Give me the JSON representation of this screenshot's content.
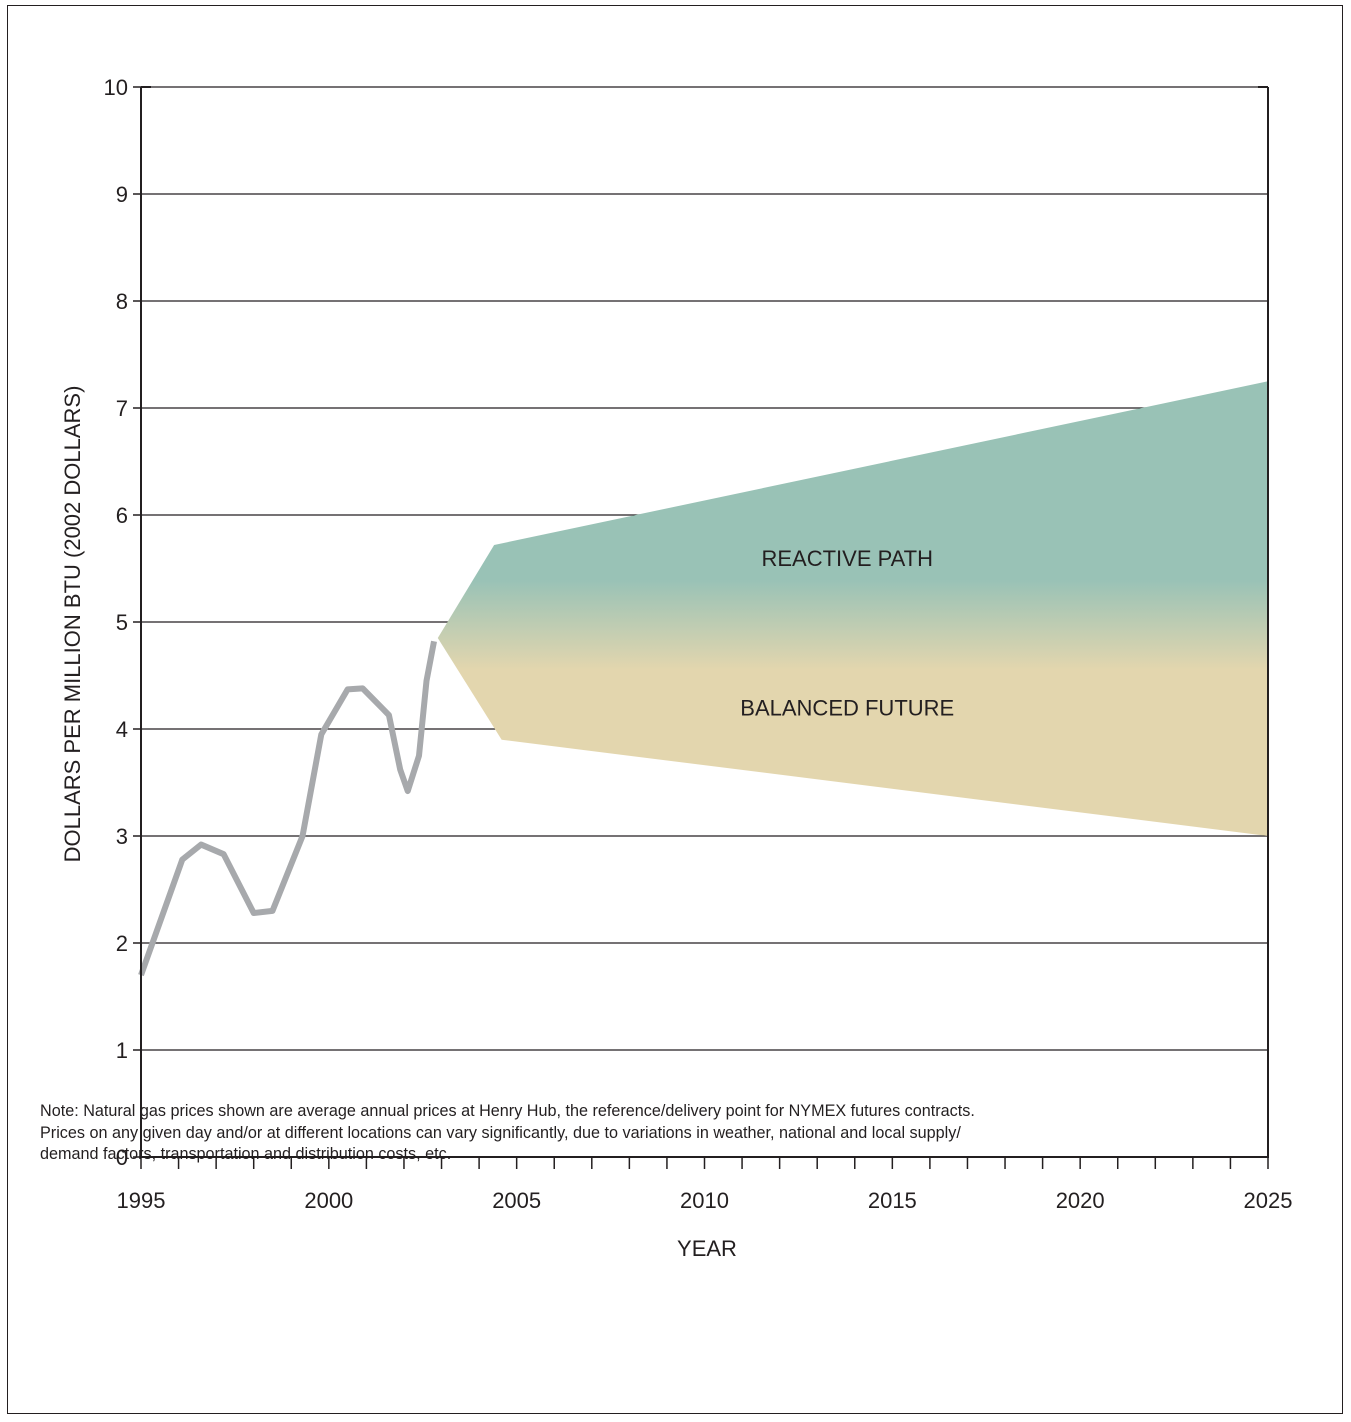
{
  "chart_data": {
    "type": "line",
    "title": "",
    "xlabel": "YEAR",
    "ylabel": "DOLLARS PER MILLION BTU (2002 DOLLARS)",
    "xlim": [
      1995,
      2025
    ],
    "ylim": [
      0,
      10
    ],
    "x_ticks": [
      1995,
      2000,
      2005,
      2010,
      2015,
      2020,
      2025
    ],
    "y_ticks": [
      0,
      1,
      2,
      3,
      4,
      5,
      6,
      7,
      8,
      9,
      10
    ],
    "grid": true,
    "series": [
      {
        "color": "#a7a9ac",
        "points": [
          [
            1995.0,
            1.7
          ],
          [
            1996.1,
            2.78
          ],
          [
            1996.6,
            2.92
          ],
          [
            1997.2,
            2.83
          ],
          [
            1998.0,
            2.28
          ],
          [
            1998.5,
            2.3
          ],
          [
            1999.3,
            3.0
          ],
          [
            1999.8,
            3.95
          ],
          [
            2000.5,
            4.37
          ],
          [
            2000.9,
            4.38
          ],
          [
            2001.6,
            4.13
          ],
          [
            2001.9,
            3.62
          ],
          [
            2002.1,
            3.42
          ],
          [
            2002.4,
            3.75
          ],
          [
            2002.6,
            4.45
          ],
          [
            2002.8,
            4.82
          ]
        ]
      }
    ],
    "bands": [
      {
        "label": "REACTIVE PATH",
        "color": "#99c2b6",
        "upper": [
          [
            2002.9,
            4.85
          ],
          [
            2004.4,
            5.72
          ],
          [
            2025.0,
            7.25
          ]
        ]
      },
      {
        "label": "BALANCED FUTURE",
        "color": "#e3d6ae",
        "lower": [
          [
            2002.9,
            4.85
          ],
          [
            2004.6,
            3.9
          ],
          [
            2025.0,
            3.0
          ]
        ]
      }
    ],
    "band_labels": [
      {
        "text": "REACTIVE PATH",
        "x": 2013.8,
        "y": 5.6
      },
      {
        "text": "BALANCED FUTURE",
        "x": 2013.8,
        "y": 4.2
      }
    ]
  },
  "note": {
    "lines": [
      "Note:  Natural gas prices shown are average annual prices at Henry Hub, the reference/delivery point for NYMEX futures contracts.",
      "Prices on any given day and/or at different locations can vary significantly, due to variations in weather, national and local supply/",
      "demand factors, transportation and distribution costs, etc."
    ]
  }
}
